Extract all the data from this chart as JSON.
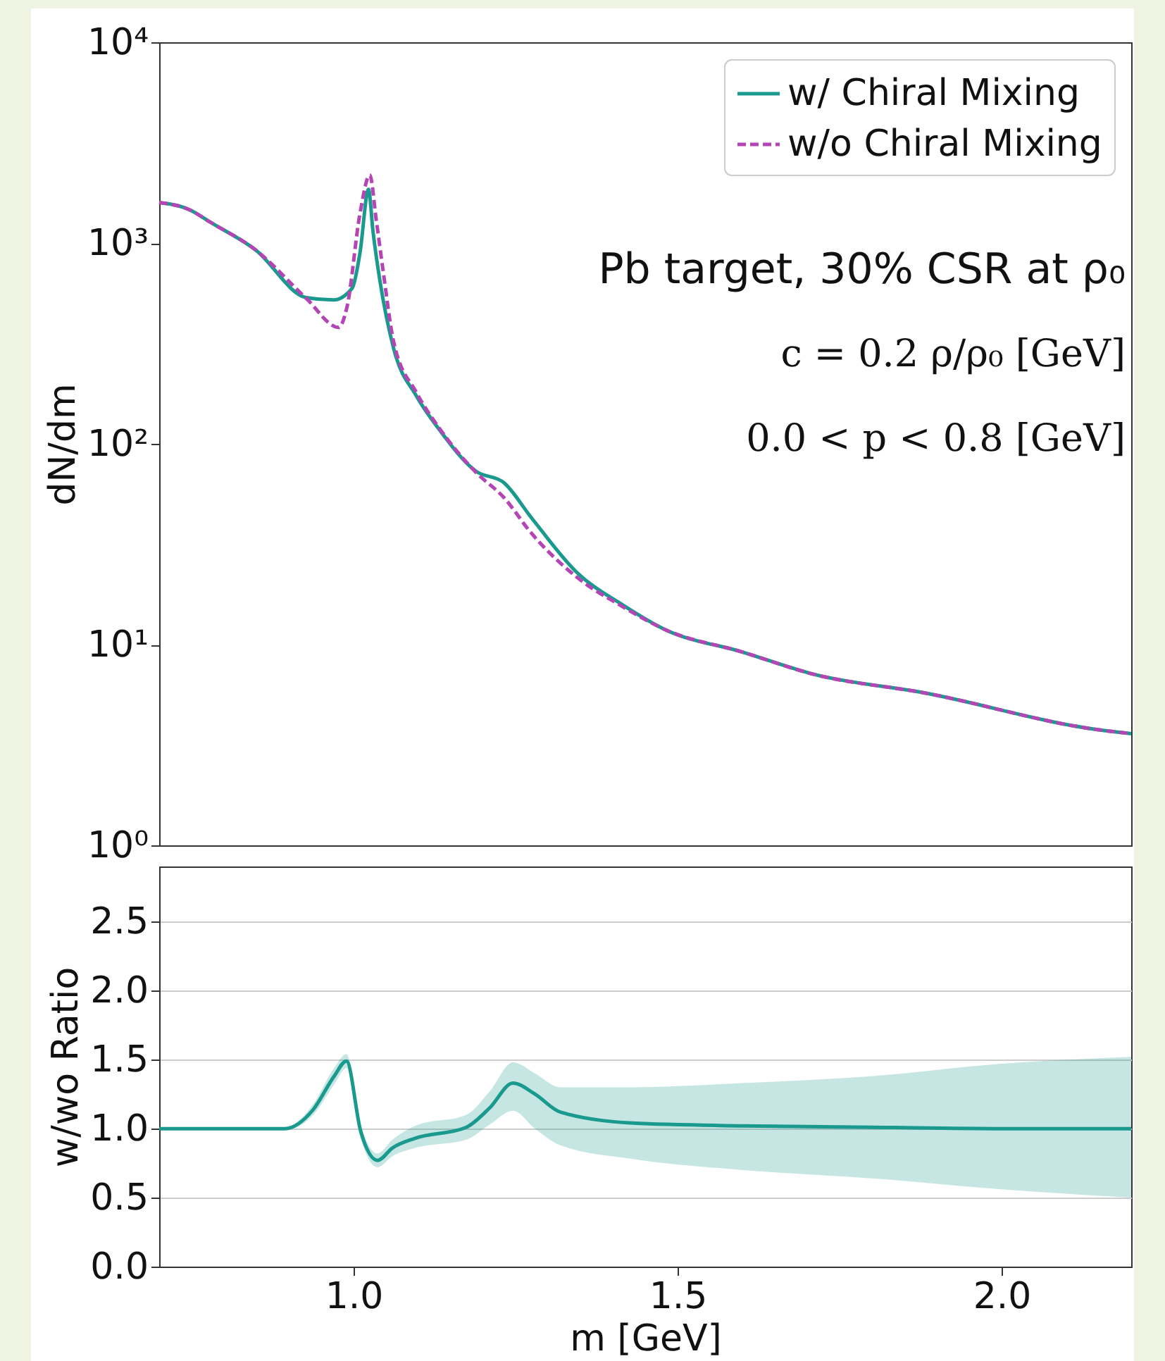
{
  "chart_data": [
    {
      "type": "line",
      "ylabel": "dN/dm",
      "log": "y",
      "xlim": [
        0.7,
        2.2
      ],
      "ylim": [
        1,
        10000
      ],
      "yticks": [
        {
          "value": 1,
          "label": "10⁰"
        },
        {
          "value": 10,
          "label": "10¹"
        },
        {
          "value": 100,
          "label": "10²"
        },
        {
          "value": 1000,
          "label": "10³"
        },
        {
          "value": 10000,
          "label": "10⁴"
        }
      ],
      "tick_labels": "y",
      "legend": "top right",
      "annotations": [
        "Pb target, 30% CSR at ρ₀",
        "c = 0.2 ρ/ρ₀ [GeV]",
        "0.0 < p < 0.8 [GeV]"
      ],
      "series": [
        {
          "name": "w/ Chiral Mixing",
          "color": "#1a9a8e",
          "line_style": "solid",
          "x": [
            0.7,
            0.748,
            0.778,
            0.849,
            0.927,
            0.969,
            0.998,
            1.01,
            1.023,
            1.03,
            1.04,
            1.062,
            1.097,
            1.132,
            1.189,
            1.232,
            1.274,
            1.345,
            1.416,
            1.48,
            1.599,
            1.711,
            1.879,
            2.148,
            2.2
          ],
          "values": [
            1590,
            1460,
            1275,
            923,
            535,
            521,
            597,
            900,
            1850,
            1140,
            668,
            297,
            173,
            118,
            73,
            64,
            43,
            22.8,
            15.7,
            11.9,
            9.2,
            7.1,
            5.76,
            3.77,
            3.6
          ]
        },
        {
          "name": "w/o Chiral Mixing",
          "color": "#b445b4",
          "line_style": "dashed",
          "x": [
            0.7,
            0.748,
            0.778,
            0.849,
            0.927,
            0.977,
            0.99,
            1.01,
            1.025,
            1.035,
            1.045,
            1.062,
            1.097,
            1.132,
            1.189,
            1.232,
            1.274,
            1.345,
            1.416,
            1.48,
            1.599,
            1.711,
            1.879,
            2.148,
            2.2
          ],
          "values": [
            1590,
            1460,
            1275,
            923,
            530,
            380,
            483,
            1410,
            2180,
            1300,
            750,
            320,
            180,
            120,
            72,
            54,
            36,
            21.6,
            15.4,
            11.9,
            9.2,
            7.1,
            5.76,
            3.77,
            3.6
          ]
        }
      ]
    },
    {
      "type": "line",
      "xlabel": "m [GeV]",
      "ylabel": "w/wo Ratio",
      "xlim": [
        0.7,
        2.2
      ],
      "ylim": [
        0,
        2.9
      ],
      "xticks": [
        {
          "value": 1,
          "label": "1.0"
        },
        1.5,
        {
          "value": 2,
          "label": "2.0"
        }
      ],
      "yticks": [
        {
          "value": 0,
          "label": "0.0"
        },
        0.5,
        {
          "value": 1,
          "label": "1.0"
        },
        1.5,
        {
          "value": 2,
          "label": "2.0"
        },
        2.5
      ],
      "grid": "y",
      "series": [
        {
          "color": "#1a9a8e",
          "x": [
            0.7,
            0.894,
            0.938,
            0.97,
            0.989,
            1.011,
            1.037,
            1.06,
            1.095,
            1.174,
            1.21,
            1.246,
            1.28,
            1.319,
            1.431,
            1.6,
            1.8,
            2.0,
            2.2
          ],
          "values": [
            1,
            1,
            1.14,
            1.38,
            1.49,
            0.98,
            0.77,
            0.86,
            0.93,
            1.01,
            1.15,
            1.33,
            1.25,
            1.12,
            1.04,
            1.02,
            1.01,
            1.0,
            1.0
          ],
          "lower": [
            1,
            0.99,
            1.1,
            1.32,
            1.44,
            0.93,
            0.72,
            0.8,
            0.86,
            0.92,
            1.03,
            1.13,
            1.0,
            0.88,
            0.78,
            0.7,
            0.64,
            0.56,
            0.5
          ],
          "upper": [
            1,
            1.01,
            1.18,
            1.44,
            1.54,
            1.03,
            0.82,
            0.92,
            1.02,
            1.1,
            1.27,
            1.48,
            1.4,
            1.3,
            1.3,
            1.33,
            1.38,
            1.47,
            1.52
          ]
        }
      ]
    }
  ]
}
